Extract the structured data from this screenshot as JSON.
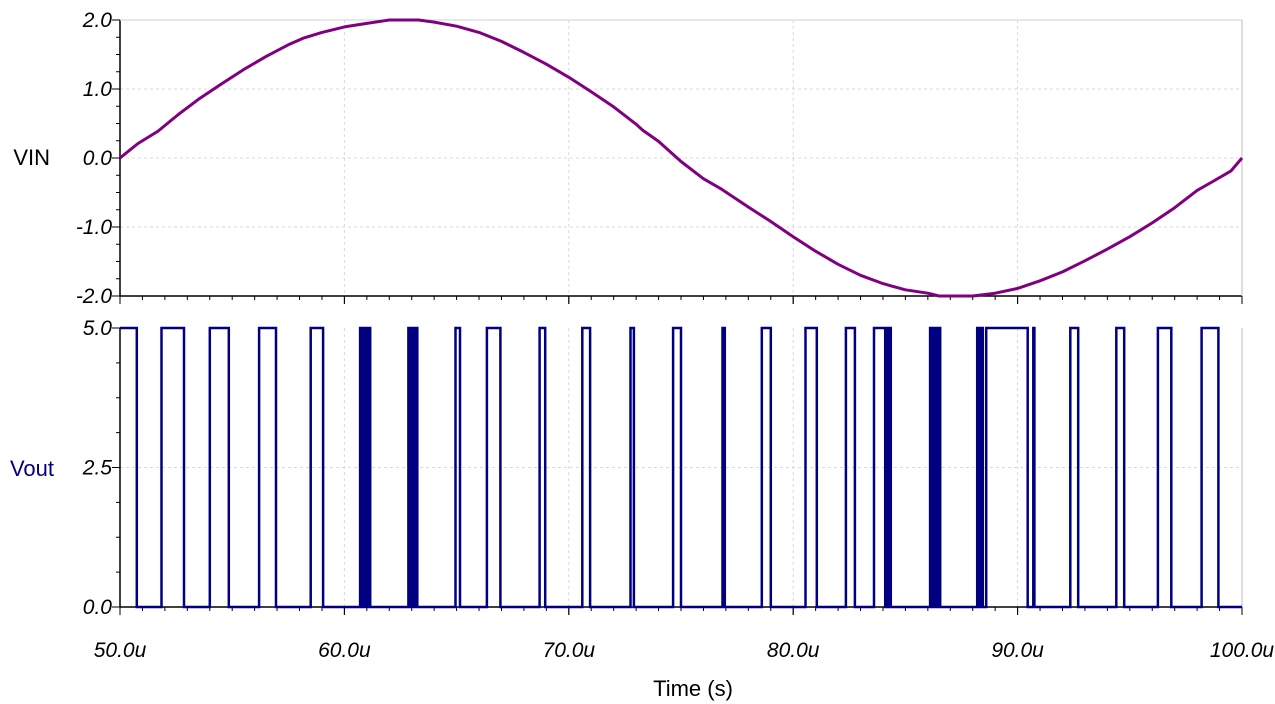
{
  "colors": {
    "vin": "#800080",
    "vout": "#000080",
    "axis": "#000000",
    "grid": "#d9d9d9"
  },
  "chart_data": [
    {
      "type": "line",
      "ylabel": "VIN",
      "xlim": [
        50.0,
        100.0
      ],
      "ylim": [
        -2.0,
        2.0
      ],
      "yticks": [
        "2.0",
        "1.0",
        "0.0",
        "-1.0",
        "-2.0"
      ],
      "grid": true,
      "series": [
        {
          "name": "VIN",
          "x": [
            50,
            50.8,
            51.7,
            52.6,
            53.5,
            54.5,
            55.5,
            56.5,
            57.5,
            58.2,
            59.0,
            60.0,
            61.0,
            61.8,
            62.0,
            63.3,
            64.0,
            65.0,
            66.0,
            67.0,
            68.0,
            69.0,
            70.0,
            71.0,
            72.0,
            73.0,
            73.3,
            74.0,
            75.0,
            76.0,
            76.8,
            78.0,
            79.0,
            80.0,
            81.0,
            82.0,
            83.0,
            84.0,
            85.0,
            86.0,
            86.5,
            88.0,
            89.0,
            90.0,
            91.0,
            92.0,
            93.0,
            94.0,
            95.0,
            96.0,
            97.0,
            98.0,
            98.7,
            99.5,
            100.0
          ],
          "y": [
            0.0,
            0.21,
            0.39,
            0.63,
            0.85,
            1.07,
            1.28,
            1.47,
            1.64,
            1.74,
            1.82,
            1.9,
            1.95,
            1.99,
            2.0,
            2.0,
            1.97,
            1.91,
            1.82,
            1.69,
            1.53,
            1.36,
            1.17,
            0.96,
            0.74,
            0.49,
            0.4,
            0.24,
            -0.05,
            -0.3,
            -0.45,
            -0.71,
            -0.92,
            -1.14,
            -1.35,
            -1.54,
            -1.7,
            -1.82,
            -1.91,
            -1.96,
            -2.0,
            -2.0,
            -1.96,
            -1.89,
            -1.78,
            -1.65,
            -1.49,
            -1.32,
            -1.14,
            -0.94,
            -0.72,
            -0.47,
            -0.34,
            -0.19,
            0.0
          ]
        }
      ]
    },
    {
      "type": "line",
      "ylabel": "Vout",
      "xlabel": "Time (s)",
      "xlim": [
        50.0,
        100.0
      ],
      "ylim": [
        0.0,
        5.0
      ],
      "yticks": [
        "5.0",
        "2.5",
        "0.0"
      ],
      "xticks": [
        "50.0u",
        "60.0u",
        "70.0u",
        "80.0u",
        "90.0u",
        "100.0u"
      ],
      "grid": true,
      "series": [
        {
          "name": "Vout",
          "high": 5.0,
          "low": 0.0,
          "edges": [
            50.75,
            51.85,
            52.85,
            54.0,
            54.85,
            56.2,
            56.95,
            58.5,
            59.05,
            60.7,
            60.8,
            60.85,
            60.9,
            60.95,
            61.0,
            61.05,
            61.15,
            62.85,
            62.9,
            62.95,
            63.0,
            63.05,
            63.1,
            63.15,
            63.25,
            64.95,
            65.15,
            66.35,
            66.95,
            68.7,
            68.95,
            70.6,
            70.95,
            72.75,
            72.9,
            74.65,
            75.0,
            76.85,
            76.95,
            78.6,
            79.0,
            80.55,
            81.05,
            82.35,
            82.75,
            83.6,
            84.1,
            84.15,
            84.2,
            84.25,
            84.35,
            86.1,
            86.2,
            86.25,
            86.3,
            86.35,
            86.4,
            86.45,
            86.55,
            88.2,
            88.3,
            88.35,
            88.45,
            88.6,
            90.45,
            90.7,
            90.75,
            92.35,
            92.7,
            94.4,
            94.75,
            96.25,
            96.85,
            98.2,
            98.95
          ]
        }
      ]
    }
  ]
}
